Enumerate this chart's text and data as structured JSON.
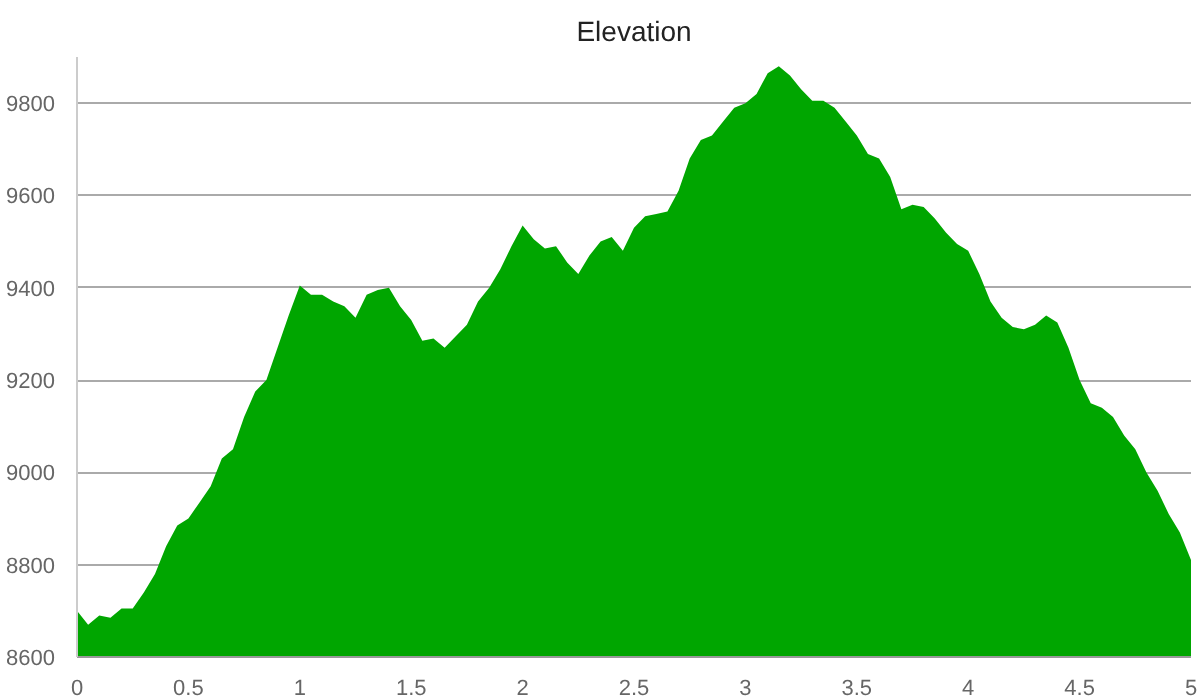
{
  "chart_data": {
    "type": "area",
    "title": "Elevation",
    "color": "#00a600",
    "x": [
      0,
      0.05,
      0.1,
      0.15,
      0.2,
      0.25,
      0.3,
      0.35,
      0.4,
      0.45,
      0.5,
      0.55,
      0.6,
      0.65,
      0.7,
      0.75,
      0.8,
      0.85,
      0.9,
      0.95,
      1.0,
      1.05,
      1.1,
      1.15,
      1.2,
      1.25,
      1.3,
      1.35,
      1.4,
      1.45,
      1.5,
      1.55,
      1.6,
      1.65,
      1.7,
      1.75,
      1.8,
      1.85,
      1.9,
      1.95,
      2.0,
      2.05,
      2.1,
      2.15,
      2.2,
      2.25,
      2.3,
      2.35,
      2.4,
      2.45,
      2.5,
      2.55,
      2.6,
      2.65,
      2.7,
      2.75,
      2.8,
      2.85,
      2.9,
      2.95,
      3.0,
      3.05,
      3.1,
      3.15,
      3.2,
      3.25,
      3.3,
      3.35,
      3.4,
      3.45,
      3.5,
      3.55,
      3.6,
      3.65,
      3.7,
      3.75,
      3.8,
      3.85,
      3.9,
      3.95,
      4.0,
      4.05,
      4.1,
      4.15,
      4.2,
      4.25,
      4.3,
      4.35,
      4.4,
      4.45,
      4.5,
      4.55,
      4.6,
      4.65,
      4.7,
      4.75,
      4.8,
      4.85,
      4.9,
      4.95,
      5.0
    ],
    "values": [
      8700,
      8670,
      8690,
      8685,
      8705,
      8705,
      8740,
      8780,
      8840,
      8885,
      8900,
      8935,
      8970,
      9030,
      9050,
      9120,
      9175,
      9200,
      9270,
      9340,
      9405,
      9385,
      9385,
      9370,
      9360,
      9335,
      9385,
      9395,
      9400,
      9360,
      9330,
      9285,
      9290,
      9270,
      9295,
      9320,
      9370,
      9400,
      9440,
      9490,
      9535,
      9505,
      9485,
      9490,
      9455,
      9430,
      9470,
      9500,
      9510,
      9480,
      9530,
      9555,
      9560,
      9565,
      9610,
      9680,
      9720,
      9730,
      9760,
      9790,
      9800,
      9820,
      9865,
      9880,
      9860,
      9830,
      9805,
      9805,
      9790,
      9760,
      9730,
      9690,
      9680,
      9640,
      9570,
      9580,
      9575,
      9550,
      9520,
      9495,
      9480,
      9430,
      9370,
      9335,
      9315,
      9310,
      9320,
      9340,
      9325,
      9270,
      9200,
      9150,
      9140,
      9120,
      9080,
      9050,
      9000,
      8960,
      8910,
      8870,
      8810
    ],
    "xlim": [
      0,
      5
    ],
    "ylim": [
      8600,
      9900
    ],
    "xticks": [
      0,
      0.5,
      1,
      1.5,
      2,
      2.5,
      3,
      3.5,
      4,
      4.5,
      5
    ],
    "yticks": [
      8600,
      8800,
      9000,
      9200,
      9400,
      9600,
      9800
    ],
    "grid": "y"
  }
}
